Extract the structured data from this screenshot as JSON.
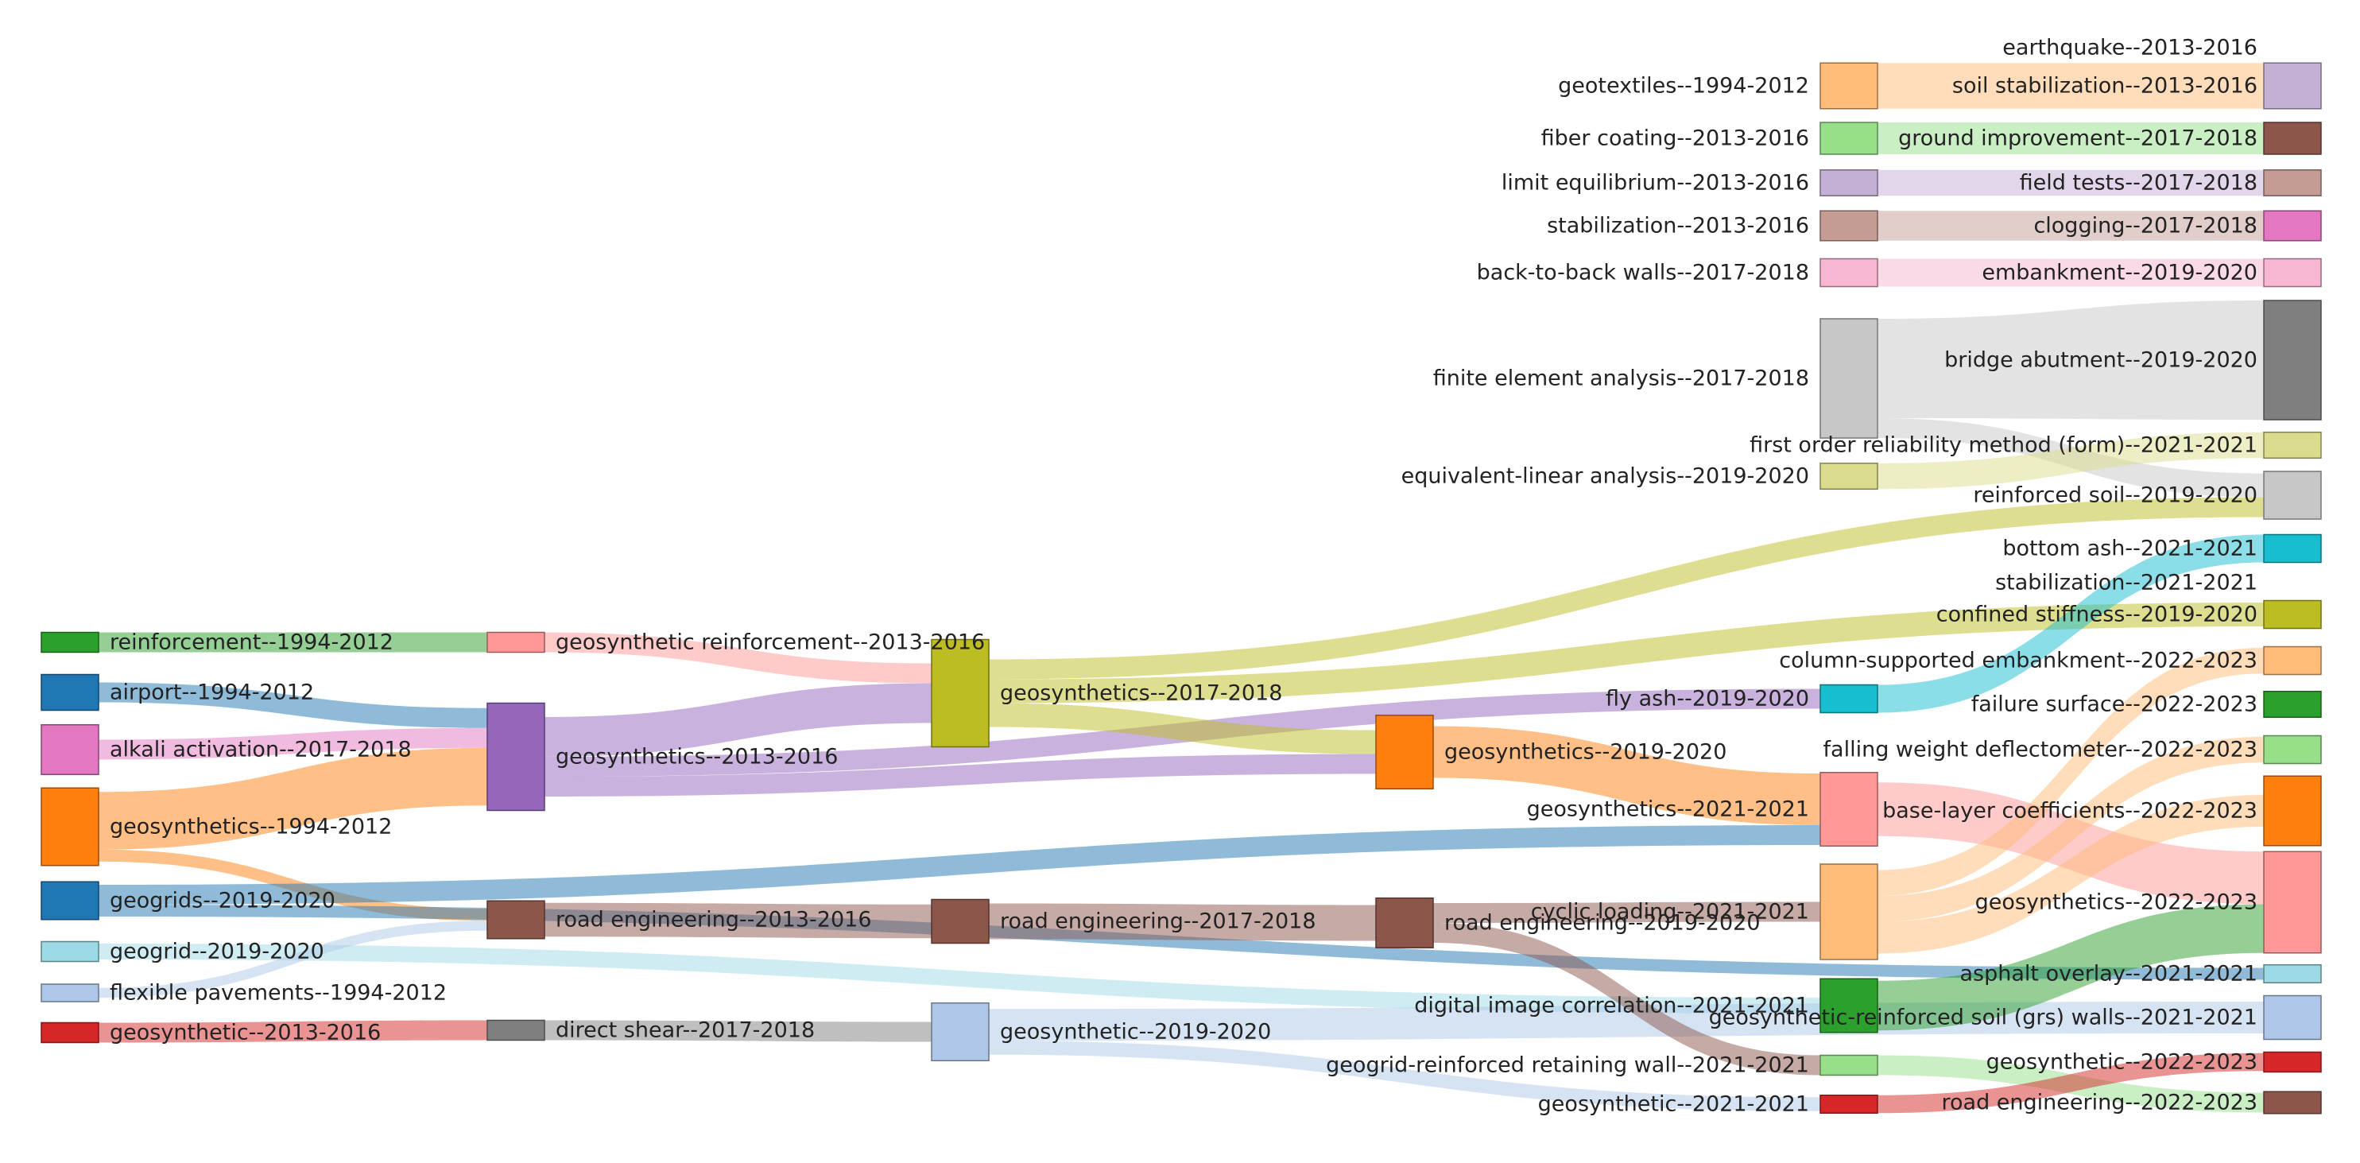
{
  "chart_data": {
    "type": "sankey",
    "title": "",
    "columns": 6,
    "nodes": [
      {
        "id": "n_reinf",
        "label": "reinforcement--1994-2012",
        "col": 0,
        "value": 1,
        "color": "#2ca02c"
      },
      {
        "id": "n_airport",
        "label": "airport--1994-2012",
        "col": 0,
        "value": 1.8,
        "color": "#1f77b4"
      },
      {
        "id": "n_alkali",
        "label": "alkali activation--2017-2018",
        "col": 0,
        "value": 2.5,
        "color": "#e377c2"
      },
      {
        "id": "n_geos94",
        "label": "geosynthetics--1994-2012",
        "col": 0,
        "value": 3.9,
        "color": "#ff7f0e"
      },
      {
        "id": "n_geogrids19",
        "label": "geogrids--2019-2020",
        "col": 0,
        "value": 1.9,
        "color": "#1f77b4"
      },
      {
        "id": "n_geogrid19",
        "label": "geogrid--2019-2020",
        "col": 0,
        "value": 1,
        "color": "#9edae5"
      },
      {
        "id": "n_flex",
        "label": "flexible pavements--1994-2012",
        "col": 0,
        "value": 0.5,
        "color": "#aec7e8"
      },
      {
        "id": "n_geosyn13",
        "label": "geosynthetic--2013-2016",
        "col": 0,
        "value": 1,
        "color": "#d62728"
      },
      {
        "id": "n_gsreinf",
        "label": "geosynthetic reinforcement--2013-2016",
        "col": 1,
        "value": 1,
        "color": "#ff9896"
      },
      {
        "id": "n_gs13",
        "label": "geosynthetics--2013-2016",
        "col": 1,
        "value": 5.4,
        "color": "#9467bd"
      },
      {
        "id": "n_road13",
        "label": "road engineering--2013-2016",
        "col": 1,
        "value": 1.9,
        "color": "#8c564b"
      },
      {
        "id": "n_ds17",
        "label": "direct shear--2017-2018",
        "col": 1,
        "value": 1,
        "color": "#7f7f7f"
      },
      {
        "id": "n_gs17",
        "label": "geosynthetics--2017-2018",
        "col": 2,
        "value": 5.4,
        "color": "#bcbd22"
      },
      {
        "id": "n_road17",
        "label": "road engineering--2017-2018",
        "col": 2,
        "value": 2.2,
        "color": "#8c564b"
      },
      {
        "id": "n_gsyn19",
        "label": "geosynthetic--2019-2020",
        "col": 2,
        "value": 2.9,
        "color": "#aec7e8"
      },
      {
        "id": "n_gs19",
        "label": "geosynthetics--2019-2020",
        "col": 3,
        "value": 3.7,
        "color": "#ff7f0e"
      },
      {
        "id": "n_road19",
        "label": "road engineering--2019-2020",
        "col": 3,
        "value": 2.5,
        "color": "#8c564b"
      },
      {
        "id": "n_geotex",
        "label": "geotextiles--1994-2012",
        "col": 4,
        "value": 2.3,
        "color": "#ffbb78"
      },
      {
        "id": "n_fiber",
        "label": "fiber coating--2013-2016",
        "col": 4,
        "value": 1.6,
        "color": "#98df8a"
      },
      {
        "id": "n_limit",
        "label": "limit equilibrium--2013-2016",
        "col": 4,
        "value": 1.3,
        "color": "#c5b0d5"
      },
      {
        "id": "n_stab13",
        "label": "stabilization--2013-2016",
        "col": 4,
        "value": 1.5,
        "color": "#c49c94"
      },
      {
        "id": "n_b2b",
        "label": "back-to-back walls--2017-2018",
        "col": 4,
        "value": 1.4,
        "color": "#f7b6d2"
      },
      {
        "id": "n_fea",
        "label": "finite element analysis--2017-2018",
        "col": 4,
        "value": 6,
        "color": "#c7c7c7"
      },
      {
        "id": "n_eqlin",
        "label": "equivalent-linear analysis--2019-2020",
        "col": 4,
        "value": 1.3,
        "color": "#dbdb8d"
      },
      {
        "id": "n_flyash",
        "label": "fly ash--2019-2020",
        "col": 4,
        "value": 1.4,
        "color": "#17becf"
      },
      {
        "id": "n_gs21",
        "label": "geosynthetics--2021-2021",
        "col": 4,
        "value": 3.7,
        "color": "#ff9896"
      },
      {
        "id": "n_cyclic",
        "label": "cyclic loading--2021-2021",
        "col": 4,
        "value": 4.8,
        "color": "#ffbb78"
      },
      {
        "id": "n_dic",
        "label": "digital image correlation--2021-2021",
        "col": 4,
        "value": 2.7,
        "color": "#2ca02c"
      },
      {
        "id": "n_ggrw",
        "label": "geogrid-reinforced retaining wall--2021-2021",
        "col": 4,
        "value": 1,
        "color": "#98df8a"
      },
      {
        "id": "n_gsyn21",
        "label": "geosynthetic--2021-2021",
        "col": 4,
        "value": 0.9,
        "color": "#d62728"
      },
      {
        "id": "t_eq",
        "label": "earthquake--2013-2016",
        "col": 5,
        "value": 0,
        "color": "#c5b0d5"
      },
      {
        "id": "t_soilstab",
        "label": "soil stabilization--2013-2016",
        "col": 5,
        "value": 2.3,
        "color": "#c5b0d5"
      },
      {
        "id": "t_groundimp",
        "label": "ground improvement--2017-2018",
        "col": 5,
        "value": 1.6,
        "color": "#8c564b"
      },
      {
        "id": "t_field",
        "label": "field tests--2017-2018",
        "col": 5,
        "value": 1.3,
        "color": "#c49c94"
      },
      {
        "id": "t_clog",
        "label": "clogging--2017-2018",
        "col": 5,
        "value": 1.5,
        "color": "#e377c2"
      },
      {
        "id": "t_emb",
        "label": "embankment--2019-2020",
        "col": 5,
        "value": 1.4,
        "color": "#f7b6d2"
      },
      {
        "id": "t_bridge",
        "label": "bridge abutment--2019-2020",
        "col": 5,
        "value": 6,
        "color": "#7f7f7f"
      },
      {
        "id": "t_form",
        "label": "first order reliability method (form)--2021-2021",
        "col": 5,
        "value": 1.3,
        "color": "#dbdb8d"
      },
      {
        "id": "t_reinfsoil",
        "label": "reinforced soil--2019-2020",
        "col": 5,
        "value": 2.4,
        "color": "#c7c7c7"
      },
      {
        "id": "t_bottom",
        "label": "bottom ash--2021-2021",
        "col": 5,
        "value": 1.4,
        "color": "#17becf"
      },
      {
        "id": "t_stab21",
        "label": "stabilization--2021-2021",
        "col": 5,
        "value": 0,
        "color": "#c49c94"
      },
      {
        "id": "t_confined",
        "label": "confined stiffness--2019-2020",
        "col": 5,
        "value": 1.4,
        "color": "#bcbd22"
      },
      {
        "id": "t_csemb",
        "label": "column-supported embankment--2022-2023",
        "col": 5,
        "value": 1.4,
        "color": "#ffbb78"
      },
      {
        "id": "t_failure",
        "label": "failure surface--2022-2023",
        "col": 5,
        "value": 1.3,
        "color": "#2ca02c"
      },
      {
        "id": "t_fwd",
        "label": "falling weight deflectometer--2022-2023",
        "col": 5,
        "value": 1.4,
        "color": "#98df8a"
      },
      {
        "id": "t_blc",
        "label": "base-layer coefficients--2022-2023",
        "col": 5,
        "value": 3.5,
        "color": "#ff7f0e"
      },
      {
        "id": "t_gs22",
        "label": "geosynthetics--2022-2023",
        "col": 5,
        "value": 5.1,
        "color": "#ff9896"
      },
      {
        "id": "t_asphalt",
        "label": "asphalt overlay--2021-2021",
        "col": 5,
        "value": 0.9,
        "color": "#9edae5"
      },
      {
        "id": "t_grs",
        "label": "geosynthetic-reinforced soil (grs) walls--2021-2021",
        "col": 5,
        "value": 2.2,
        "color": "#aec7e8"
      },
      {
        "id": "t_gsyn22",
        "label": "geosynthetic--2022-2023",
        "col": 5,
        "value": 1,
        "color": "#d62728"
      },
      {
        "id": "t_road22",
        "label": "road engineering--2022-2023",
        "col": 5,
        "value": 1.1,
        "color": "#8c564b"
      }
    ],
    "links": [
      {
        "source": "n_reinf",
        "target": "n_gsreinf",
        "value": 1
      },
      {
        "source": "n_airport",
        "target": "n_gs13",
        "value": 1
      },
      {
        "source": "n_alkali",
        "target": "n_gs13",
        "value": 1
      },
      {
        "source": "n_geos94",
        "target": "n_gs13",
        "value": 2.9
      },
      {
        "source": "n_geos94",
        "target": "n_road13",
        "value": 0.6
      },
      {
        "source": "n_geogrids19",
        "target": "n_gs21",
        "value": 1
      },
      {
        "source": "n_geogrids19",
        "target": "t_asphalt",
        "value": 0.6
      },
      {
        "source": "n_geogrid19",
        "target": "n_dic",
        "value": 0.8
      },
      {
        "source": "n_flex",
        "target": "n_road13",
        "value": 0.5
      },
      {
        "source": "n_geosyn13",
        "target": "n_ds17",
        "value": 1
      },
      {
        "source": "n_gsreinf",
        "target": "n_gs17",
        "value": 1
      },
      {
        "source": "n_gs13",
        "target": "n_gs17",
        "value": 2
      },
      {
        "source": "n_gs13",
        "target": "n_flyash",
        "value": 1
      },
      {
        "source": "n_gs13",
        "target": "n_gs19",
        "value": 1
      },
      {
        "source": "n_road13",
        "target": "n_road17",
        "value": 1.7
      },
      {
        "source": "n_ds17",
        "target": "n_gsyn19",
        "value": 1
      },
      {
        "source": "n_gs17",
        "target": "t_reinfsoil",
        "value": 1
      },
      {
        "source": "n_gs17",
        "target": "t_confined",
        "value": 1.2
      },
      {
        "source": "n_gs17",
        "target": "n_gs19",
        "value": 1.2
      },
      {
        "source": "n_road17",
        "target": "n_road19",
        "value": 1.8
      },
      {
        "source": "n_gsyn19",
        "target": "t_grs",
        "value": 1.6
      },
      {
        "source": "n_gsyn19",
        "target": "n_gsyn21",
        "value": 0.7
      },
      {
        "source": "n_gs19",
        "target": "n_gs21",
        "value": 2.6
      },
      {
        "source": "n_road19",
        "target": "n_cyclic",
        "value": 1
      },
      {
        "source": "n_road19",
        "target": "n_ggrw",
        "value": 1
      },
      {
        "source": "n_geotex",
        "target": "t_soilstab",
        "value": 2.3
      },
      {
        "source": "n_fiber",
        "target": "t_groundimp",
        "value": 1.6
      },
      {
        "source": "n_limit",
        "target": "t_field",
        "value": 1.3
      },
      {
        "source": "n_stab13",
        "target": "t_clog",
        "value": 1.5
      },
      {
        "source": "n_b2b",
        "target": "t_emb",
        "value": 1.4
      },
      {
        "source": "n_fea",
        "target": "t_bridge",
        "value": 6
      },
      {
        "source": "n_fea",
        "target": "t_reinfsoil",
        "value": 1.2
      },
      {
        "source": "n_eqlin",
        "target": "t_form",
        "value": 1.3
      },
      {
        "source": "n_flyash",
        "target": "t_bottom",
        "value": 1.4
      },
      {
        "source": "n_gs21",
        "target": "t_gs22",
        "value": 2.7
      },
      {
        "source": "n_cyclic",
        "target": "t_csemb",
        "value": 1.3
      },
      {
        "source": "n_cyclic",
        "target": "t_fwd",
        "value": 1.3
      },
      {
        "source": "n_cyclic",
        "target": "t_blc",
        "value": 1.6
      },
      {
        "source": "n_dic",
        "target": "t_gs22",
        "value": 2.5
      },
      {
        "source": "n_ggrw",
        "target": "t_road22",
        "value": 1
      },
      {
        "source": "n_gsyn21",
        "target": "t_gsyn22",
        "value": 0.9
      }
    ]
  }
}
